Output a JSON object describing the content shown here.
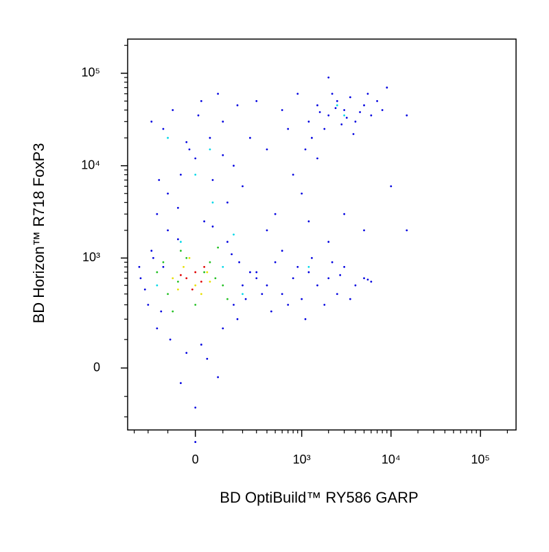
{
  "chart_data": {
    "type": "scatter",
    "xlabel": "BD OptiBuild™ RY586 GARP",
    "ylabel": "BD Horizon™ R718 FoxP3",
    "xscale": "biexponential",
    "yscale": "biexponential",
    "xlim": [
      -360,
      250000
    ],
    "ylim": [
      -290,
      234000
    ],
    "xticks": [
      0,
      {
        "value": 1000,
        "label": "10³"
      },
      {
        "value": 10000,
        "label": "10⁴"
      },
      {
        "value": 100000,
        "label": "10⁵"
      }
    ],
    "yticks": [
      0,
      {
        "value": 1000,
        "label": "10³"
      },
      {
        "value": 10000,
        "label": "10⁴"
      },
      {
        "value": 100000,
        "label": "10⁵"
      }
    ],
    "xminorticks": [
      -300,
      -200,
      -100,
      100,
      200,
      300,
      400,
      500,
      600,
      700,
      800,
      900,
      2000,
      3000,
      4000,
      5000,
      6000,
      7000,
      8000,
      9000,
      20000,
      30000,
      40000,
      50000,
      60000,
      70000,
      80000,
      90000,
      200000
    ],
    "yminorticks": [
      -200,
      -100,
      100,
      200,
      300,
      400,
      500,
      600,
      700,
      800,
      900,
      2000,
      3000,
      4000,
      5000,
      6000,
      7000,
      8000,
      9000,
      20000,
      30000,
      40000,
      50000,
      60000,
      70000,
      80000,
      90000,
      200000
    ],
    "series": [
      {
        "color": "#0000e0",
        "x": [
          -250,
          -200,
          -180,
          -150,
          -120,
          -100,
          -90,
          -60,
          -30,
          0,
          20,
          60,
          100,
          120,
          150,
          180,
          200,
          250,
          -220,
          -170,
          140,
          220,
          -50,
          80,
          300,
          350,
          -130,
          170,
          40,
          -260,
          -150,
          -100,
          -50,
          0,
          50,
          100,
          -80,
          20,
          120,
          -20,
          60,
          -120,
          150,
          80,
          -60,
          30,
          -30,
          100,
          -140,
          10,
          200,
          250,
          -180,
          170,
          400,
          600,
          800,
          500,
          300,
          700,
          1000,
          400,
          900,
          1200,
          2000,
          3000,
          5000,
          1500,
          600,
          1200,
          1500,
          2000,
          2500,
          3000,
          1800,
          4000,
          5000,
          6000,
          2200,
          3500,
          7000,
          1300,
          2800,
          4500,
          1600,
          2400,
          3200,
          8000,
          15000,
          2000,
          9000,
          1100,
          3800,
          5500,
          300,
          400,
          500,
          600,
          800,
          1000,
          1200,
          1500,
          2000,
          2500,
          3000,
          4000,
          5000,
          700,
          900,
          1800,
          2200,
          3500,
          450,
          1300,
          6000,
          5500,
          1100,
          2700,
          15000,
          10000,
          0
        ],
        "y": [
          600,
          300,
          1200,
          150,
          800,
          2000,
          100,
          1600,
          50,
          -150,
          80,
          2200,
          150,
          1500,
          300,
          900,
          500,
          700,
          450,
          1000,
          1100,
          350,
          -50,
          -30,
          600,
          400,
          250,
          200,
          30,
          800,
          3000,
          5000,
          8000,
          12000,
          20000,
          30000,
          40000,
          50000,
          4000,
          15000,
          7000,
          25000,
          10000,
          60000,
          3500,
          2500,
          18000,
          13000,
          7000,
          35000,
          6000,
          20000,
          30000,
          45000,
          15000,
          40000,
          8000,
          3000,
          50000,
          25000,
          5000,
          2000,
          60000,
          2500,
          1500,
          3000,
          2000,
          12000,
          1200,
          30000,
          45000,
          35000,
          50000,
          40000,
          25000,
          30000,
          45000,
          35000,
          60000,
          55000,
          50000,
          20000,
          28000,
          38000,
          38000,
          42000,
          33000,
          40000,
          35000,
          90000,
          70000,
          15000,
          22000,
          60000,
          700,
          500,
          900,
          400,
          600,
          350,
          700,
          500,
          600,
          400,
          800,
          500,
          600,
          300,
          800,
          300,
          900,
          350,
          250,
          1000,
          550,
          580,
          200,
          650,
          2000,
          6000,
          -400
        ]
      },
      {
        "color": "#00d8e8",
        "x": [
          -100,
          50,
          0,
          -50,
          100,
          200,
          1200,
          2500,
          3000,
          -150,
          150,
          60
        ],
        "y": [
          20000,
          15000,
          8000,
          1500,
          800,
          400,
          800,
          45000,
          35000,
          500,
          1800,
          4000
        ]
      },
      {
        "color": "#20c020",
        "x": [
          -150,
          -100,
          -50,
          0,
          50,
          100,
          -120,
          80,
          -80,
          30,
          120,
          -30,
          70,
          -60
        ],
        "y": [
          700,
          400,
          1200,
          300,
          900,
          500,
          900,
          1300,
          250,
          700,
          350,
          1000,
          600,
          550
        ]
      },
      {
        "color": "#e8e000",
        "x": [
          -80,
          -40,
          0,
          40,
          20,
          -60,
          50,
          -20
        ],
        "y": [
          600,
          800,
          500,
          700,
          400,
          450,
          550,
          1000
        ]
      },
      {
        "color": "#e00000",
        "x": [
          -30,
          0,
          20,
          -10,
          30,
          -50
        ],
        "y": [
          600,
          700,
          550,
          450,
          800,
          650
        ]
      }
    ]
  }
}
